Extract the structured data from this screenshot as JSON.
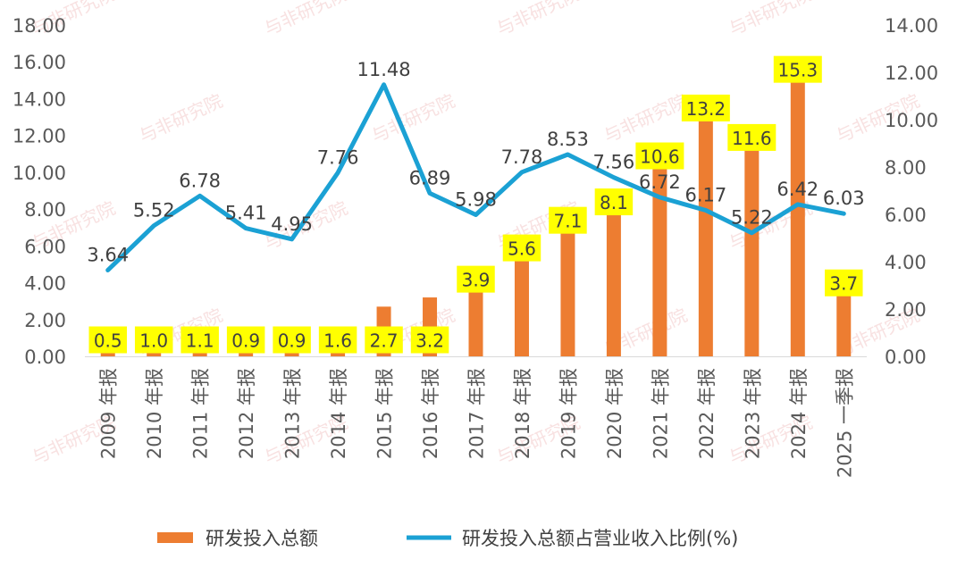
{
  "chart_data": {
    "type": "bar",
    "categories": [
      "2009 年报",
      "2010 年报",
      "2011 年报",
      "2012 年报",
      "2013 年报",
      "2014 年报",
      "2015 年报",
      "2016 年报",
      "2017 年报",
      "2018 年报",
      "2019 年报",
      "2020 年报",
      "2021 年报",
      "2022 年报",
      "2023 年报",
      "2024 年报",
      "2025 一季报"
    ],
    "series": [
      {
        "name": "研发投入总额",
        "type": "bar",
        "axis": "left",
        "color": "#ED7D31",
        "values": [
          0.5,
          1.0,
          1.1,
          0.9,
          0.9,
          1.6,
          2.7,
          3.2,
          3.9,
          5.6,
          7.1,
          8.1,
          10.6,
          13.2,
          11.6,
          15.3,
          3.7
        ],
        "value_labels": [
          "0.5",
          "1.0",
          "1.1",
          "0.9",
          "0.9",
          "1.6",
          "2.7",
          "3.2",
          "3.9",
          "5.6",
          "7.1",
          "8.1",
          "10.6",
          "13.2",
          "11.6",
          "15.3",
          "3.7"
        ],
        "label_bg": "#FFFF00"
      },
      {
        "name": "研发投入总额占营业收入比例(%)",
        "type": "line",
        "axis": "right",
        "color": "#1BA1D4",
        "values": [
          3.64,
          5.52,
          6.78,
          5.41,
          4.95,
          7.76,
          11.48,
          6.89,
          5.98,
          7.78,
          8.53,
          7.56,
          6.72,
          6.17,
          5.22,
          6.42,
          6.03
        ],
        "value_labels": [
          "3.64",
          "5.52",
          "6.78",
          "5.41",
          "4.95",
          "7.76",
          "11.48",
          "6.89",
          "5.98",
          "7.78",
          "8.53",
          "7.56",
          "6.72",
          "6.17",
          "5.22",
          "6.42",
          "6.03"
        ]
      }
    ],
    "y_left": {
      "min": 0,
      "max": 18,
      "ticks": [
        "0.00",
        "2.00",
        "4.00",
        "6.00",
        "8.00",
        "10.00",
        "12.00",
        "14.00",
        "16.00",
        "18.00"
      ]
    },
    "y_right": {
      "min": 0,
      "max": 14,
      "ticks": [
        "0.00",
        "2.00",
        "4.00",
        "6.00",
        "8.00",
        "10.00",
        "12.00",
        "14.00"
      ]
    },
    "grid": false,
    "legend_position": "bottom"
  },
  "watermark": "与非研究院"
}
